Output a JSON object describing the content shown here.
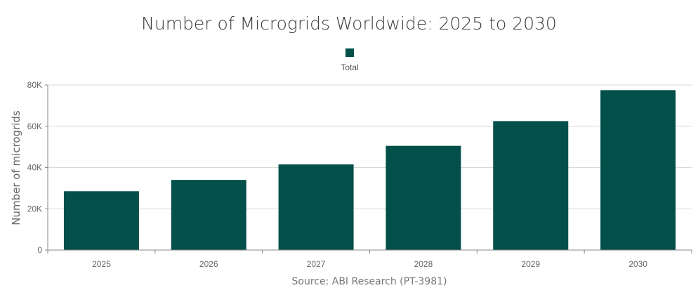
{
  "chart_data": {
    "type": "bar",
    "title": "Number of Microgrids Worldwide: 2025 to 2030",
    "ylabel": "Number of microgrids",
    "xlabel": "",
    "source": "Source: ABI Research (PT-3981)",
    "categories": [
      "2025",
      "2026",
      "2027",
      "2028",
      "2029",
      "2030"
    ],
    "series": [
      {
        "name": "Total",
        "color": "#034f4a",
        "values": [
          28500,
          34000,
          41500,
          50500,
          62500,
          77500
        ]
      }
    ],
    "ylim": [
      0,
      80000
    ],
    "yticks": [
      0,
      20000,
      40000,
      60000,
      80000
    ],
    "ytick_labels": [
      "0",
      "20K",
      "40K",
      "60K",
      "80K"
    ],
    "grid": true,
    "legend_position": "top-center"
  }
}
